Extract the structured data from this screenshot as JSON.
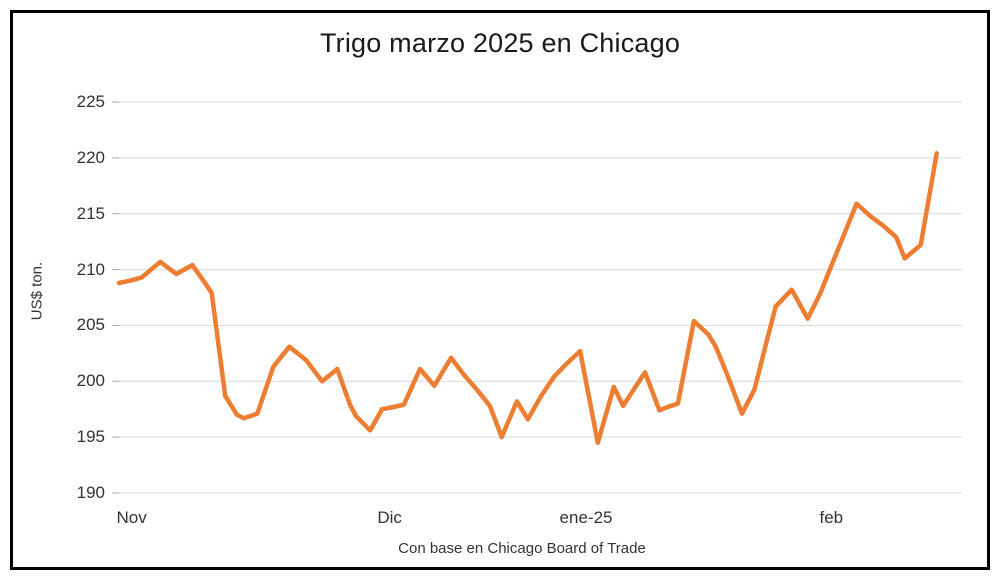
{
  "colors": {
    "line": "#ED7D31",
    "gridline": "#D9D9D9",
    "tick_mark": "#A6A6A6",
    "text": "#333333",
    "title_text": "#1a1a1a",
    "border": "#000000"
  },
  "chart_data": {
    "type": "line",
    "title": "Trigo marzo 2025 en Chicago",
    "ylabel": "US$ ton.",
    "xlabel_caption": "Con base en Chicago Board of Trade",
    "ylim": [
      190,
      225
    ],
    "yticks": [
      190,
      195,
      200,
      205,
      210,
      215,
      220,
      225
    ],
    "grid": "horizontal",
    "legend": "none",
    "xticks": [
      {
        "label": "Nov",
        "pos": 1.5
      },
      {
        "label": "Dic",
        "pos": 32.1
      },
      {
        "label": "ene-25",
        "pos": 55.4
      },
      {
        "label": "feb",
        "pos": 84.5
      }
    ],
    "series": [
      {
        "name": "Trigo marzo 2025",
        "x_unit": "percent-of-axis",
        "points": [
          [
            0.0,
            208.8
          ],
          [
            1.3,
            209.0
          ],
          [
            2.7,
            209.3
          ],
          [
            4.9,
            210.7
          ],
          [
            6.8,
            209.6
          ],
          [
            8.7,
            210.4
          ],
          [
            10.3,
            208.7
          ],
          [
            11.0,
            207.9
          ],
          [
            12.6,
            198.7
          ],
          [
            14.0,
            197.0
          ],
          [
            14.8,
            196.7
          ],
          [
            16.4,
            197.1
          ],
          [
            18.3,
            201.3
          ],
          [
            20.2,
            203.1
          ],
          [
            22.2,
            201.9
          ],
          [
            24.1,
            200.0
          ],
          [
            25.9,
            201.1
          ],
          [
            27.4,
            197.9
          ],
          [
            28.1,
            196.9
          ],
          [
            29.8,
            195.6
          ],
          [
            31.2,
            197.5
          ],
          [
            32.6,
            197.7
          ],
          [
            33.8,
            197.9
          ],
          [
            35.7,
            201.1
          ],
          [
            37.4,
            199.6
          ],
          [
            39.4,
            202.1
          ],
          [
            40.9,
            200.6
          ],
          [
            42.5,
            199.2
          ],
          [
            44.0,
            197.8
          ],
          [
            45.4,
            195.0
          ],
          [
            47.2,
            198.2
          ],
          [
            48.5,
            196.6
          ],
          [
            50.1,
            198.7
          ],
          [
            51.6,
            200.4
          ],
          [
            53.0,
            201.5
          ],
          [
            54.7,
            202.7
          ],
          [
            56.8,
            194.5
          ],
          [
            58.7,
            199.5
          ],
          [
            59.8,
            197.8
          ],
          [
            62.4,
            200.8
          ],
          [
            64.1,
            197.4
          ],
          [
            65.1,
            197.7
          ],
          [
            66.3,
            198.0
          ],
          [
            68.2,
            205.4
          ],
          [
            69.9,
            204.2
          ],
          [
            70.8,
            203.1
          ],
          [
            72.2,
            200.5
          ],
          [
            73.9,
            197.1
          ],
          [
            75.4,
            199.3
          ],
          [
            76.7,
            203.2
          ],
          [
            77.9,
            206.7
          ],
          [
            79.8,
            208.2
          ],
          [
            81.7,
            205.6
          ],
          [
            83.2,
            207.9
          ],
          [
            84.7,
            210.7
          ],
          [
            86.1,
            213.3
          ],
          [
            87.5,
            215.9
          ],
          [
            89.1,
            214.8
          ],
          [
            90.7,
            213.9
          ],
          [
            92.2,
            212.9
          ],
          [
            93.2,
            211.0
          ],
          [
            95.1,
            212.2
          ],
          [
            97.0,
            220.4
          ]
        ]
      }
    ]
  }
}
